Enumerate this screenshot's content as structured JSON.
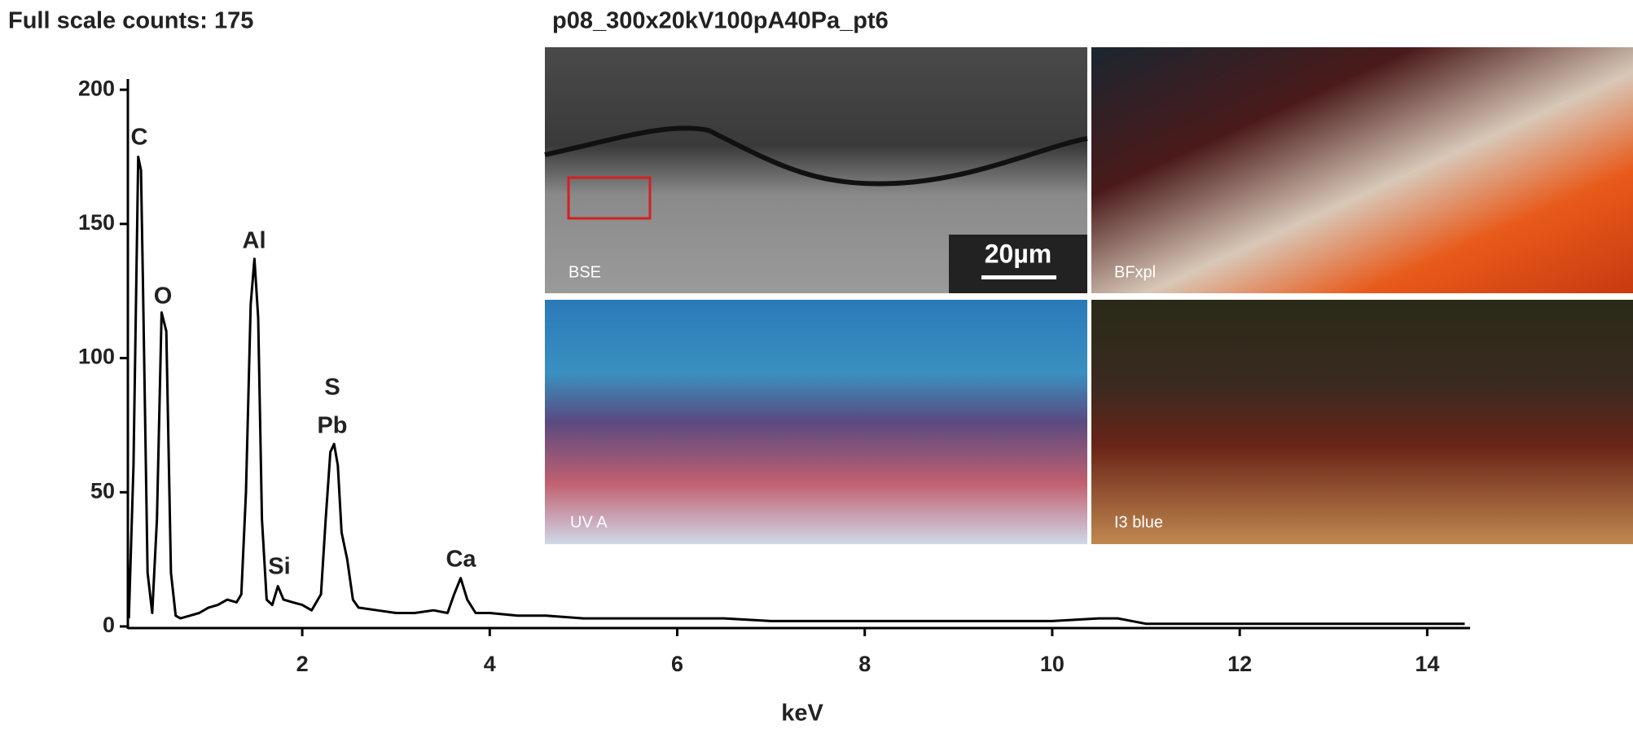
{
  "chart_data": {
    "type": "line",
    "title": "p08_300x20kV100pA40Pa_pt6",
    "subtitle": "Full scale counts: 175",
    "x_label": "keV",
    "xlim": [
      0.14,
      14.44
    ],
    "ylim": [
      0,
      204
    ],
    "xticks": [
      2,
      4,
      6,
      8,
      10,
      12,
      14
    ],
    "yticks": [
      0,
      50,
      100,
      150,
      200
    ],
    "annotations": [
      "C",
      "O",
      "Al",
      "Si",
      "S",
      "Pb",
      "Ca"
    ],
    "x": [
      0.15,
      0.2,
      0.25,
      0.28,
      0.3,
      0.35,
      0.4,
      0.45,
      0.5,
      0.55,
      0.6,
      0.65,
      0.7,
      0.8,
      0.9,
      1.0,
      1.1,
      1.2,
      1.3,
      1.35,
      1.4,
      1.45,
      1.49,
      1.53,
      1.57,
      1.62,
      1.68,
      1.74,
      1.8,
      1.9,
      2.0,
      2.1,
      2.2,
      2.25,
      2.3,
      2.34,
      2.38,
      2.42,
      2.48,
      2.54,
      2.6,
      2.8,
      3.0,
      3.2,
      3.4,
      3.55,
      3.62,
      3.69,
      3.76,
      3.85,
      4.0,
      4.3,
      4.6,
      5.0,
      5.5,
      6.0,
      6.5,
      7.0,
      7.5,
      8.0,
      8.5,
      9.0,
      9.5,
      10.0,
      10.5,
      10.7,
      11.0,
      11.5,
      12.0,
      12.5,
      13.0,
      13.5,
      14.0,
      14.4
    ],
    "series": [
      {
        "name": "spectrum",
        "color": "#000000",
        "values": [
          3,
          60,
          175,
          170,
          130,
          20,
          5,
          40,
          117,
          110,
          20,
          4,
          3,
          4,
          5,
          7,
          8,
          10,
          9,
          12,
          50,
          120,
          137,
          115,
          40,
          10,
          8,
          15,
          10,
          9,
          8,
          6,
          12,
          40,
          65,
          68,
          60,
          35,
          25,
          10,
          7,
          6,
          5,
          5,
          6,
          5,
          12,
          18,
          10,
          5,
          5,
          4,
          4,
          3,
          3,
          3,
          3,
          2,
          2,
          2,
          2,
          2,
          2,
          2,
          3,
          3,
          1,
          1,
          1,
          1,
          1,
          1,
          1,
          1
        ]
      }
    ],
    "scale_bar": "20µm",
    "images": [
      "BSE",
      "BFxpl",
      "UV A",
      "I3 blue"
    ]
  }
}
